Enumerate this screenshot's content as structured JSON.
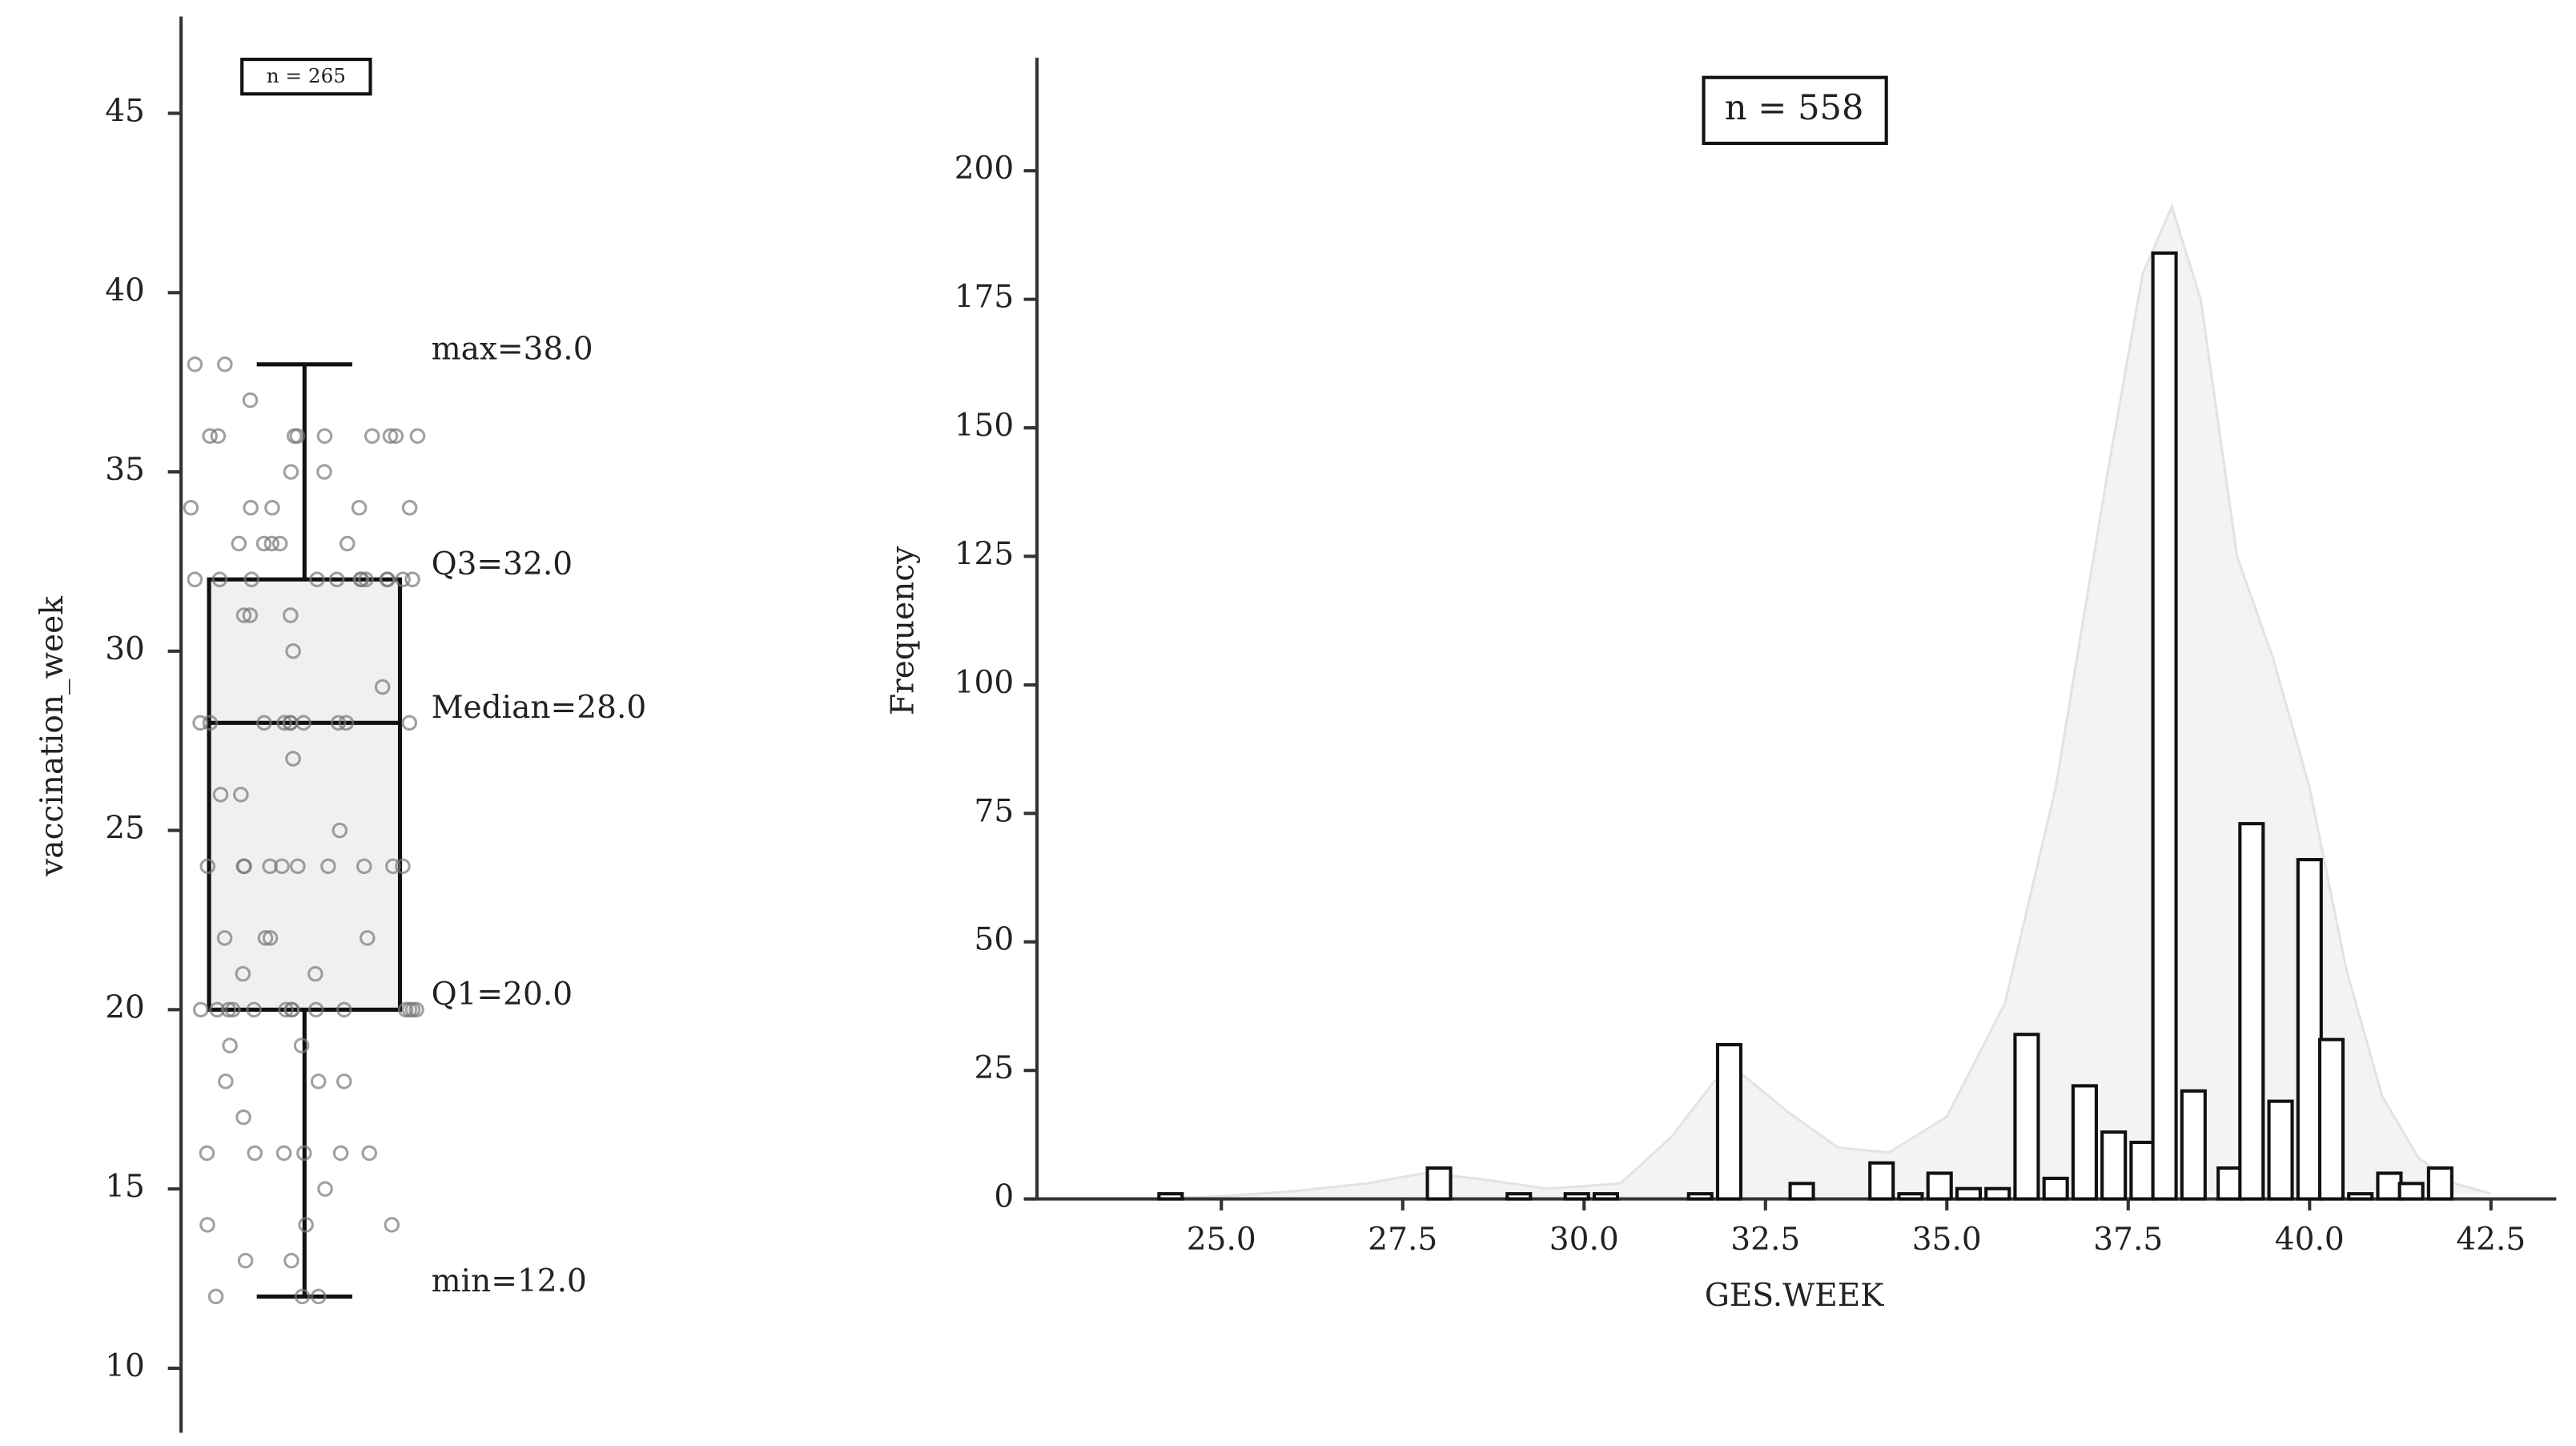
{
  "chart_data": [
    {
      "type": "box",
      "ylabel": "vaccination_week",
      "annotation_box": "n = 265",
      "ylim": [
        8.2,
        47.7
      ],
      "yticks": [
        10,
        15,
        20,
        25,
        30,
        35,
        40,
        45
      ],
      "min": 12,
      "q1": 20,
      "median": 28,
      "q3": 32,
      "max": 38,
      "annotations": [
        "min=12.0",
        "Q1=20.0",
        "Median=28.0",
        "Q3=32.0",
        "max=38.0"
      ],
      "color": "#f0f0f0",
      "points": [
        12,
        12,
        12,
        13,
        13,
        14,
        14,
        14,
        15,
        16,
        16,
        16,
        16,
        16,
        16,
        17,
        18,
        18,
        18,
        19,
        19,
        20,
        20,
        20,
        20,
        20,
        20,
        20,
        20,
        20,
        20,
        20,
        20,
        20,
        20,
        21,
        21,
        22,
        22,
        22,
        22,
        24,
        24,
        24,
        24,
        24,
        24,
        24,
        24,
        24,
        24,
        25,
        26,
        26,
        27,
        28,
        28,
        28,
        28,
        28,
        28,
        28,
        28,
        28,
        28,
        29,
        30,
        31,
        31,
        31,
        32,
        32,
        32,
        32,
        32,
        32,
        32,
        32,
        32,
        32,
        32,
        32,
        33,
        33,
        33,
        33,
        33,
        34,
        34,
        34,
        34,
        34,
        35,
        35,
        36,
        36,
        36,
        36,
        36,
        36,
        36,
        36,
        36,
        37,
        38,
        38
      ]
    },
    {
      "type": "bar",
      "xlabel": "GES.WEEK",
      "ylabel": "Frequency",
      "annotation_box": "n = 558",
      "xlim": [
        22.3,
        43.4
      ],
      "ylim": [
        0,
        222
      ],
      "xticks": [
        {
          "value": 25,
          "label": "25.0"
        },
        {
          "value": 27.5,
          "label": "27.5"
        },
        {
          "value": 30,
          "label": "30.0"
        },
        {
          "value": 32.5,
          "label": "32.5"
        },
        {
          "value": 35,
          "label": "35.0"
        },
        {
          "value": 37.5,
          "label": "37.5"
        },
        {
          "value": 40,
          "label": "40.0"
        },
        {
          "value": 42.5,
          "label": "42.5"
        }
      ],
      "yticks": [
        0,
        25,
        50,
        75,
        100,
        125,
        150,
        175,
        200
      ],
      "color": "#ffffff",
      "x": [
        24.3,
        28.0,
        29.1,
        29.9,
        30.3,
        31.6,
        32.0,
        33.0,
        34.1,
        34.5,
        34.9,
        35.3,
        35.7,
        36.1,
        36.5,
        36.9,
        37.3,
        37.7,
        38.0,
        38.4,
        38.9,
        39.2,
        39.6,
        40.0,
        40.3,
        40.7,
        41.1,
        41.4,
        41.8
      ],
      "values": [
        1,
        6,
        1,
        1,
        1,
        1,
        30,
        3,
        7,
        1,
        5,
        2,
        2,
        32,
        4,
        22,
        13,
        11,
        184,
        21,
        6,
        73,
        19,
        66,
        31,
        1,
        5,
        3,
        6
      ],
      "density_color": "#f3f3f3",
      "density_x": [
        24,
        25,
        26,
        27,
        27.8,
        28.5,
        29.5,
        30.5,
        31.2,
        31.8,
        32.2,
        32.8,
        33.5,
        34.2,
        35,
        35.8,
        36.5,
        37.2,
        37.7,
        38.1,
        38.5,
        39,
        39.5,
        40,
        40.5,
        41,
        41.5,
        42,
        42.5
      ],
      "density_values": [
        0,
        0.5,
        1.5,
        3,
        5,
        4,
        2,
        3,
        12,
        23,
        24,
        17,
        10,
        9,
        16,
        38,
        80,
        140,
        180,
        193,
        175,
        125,
        105,
        80,
        45,
        20,
        8,
        3,
        1
      ]
    }
  ]
}
